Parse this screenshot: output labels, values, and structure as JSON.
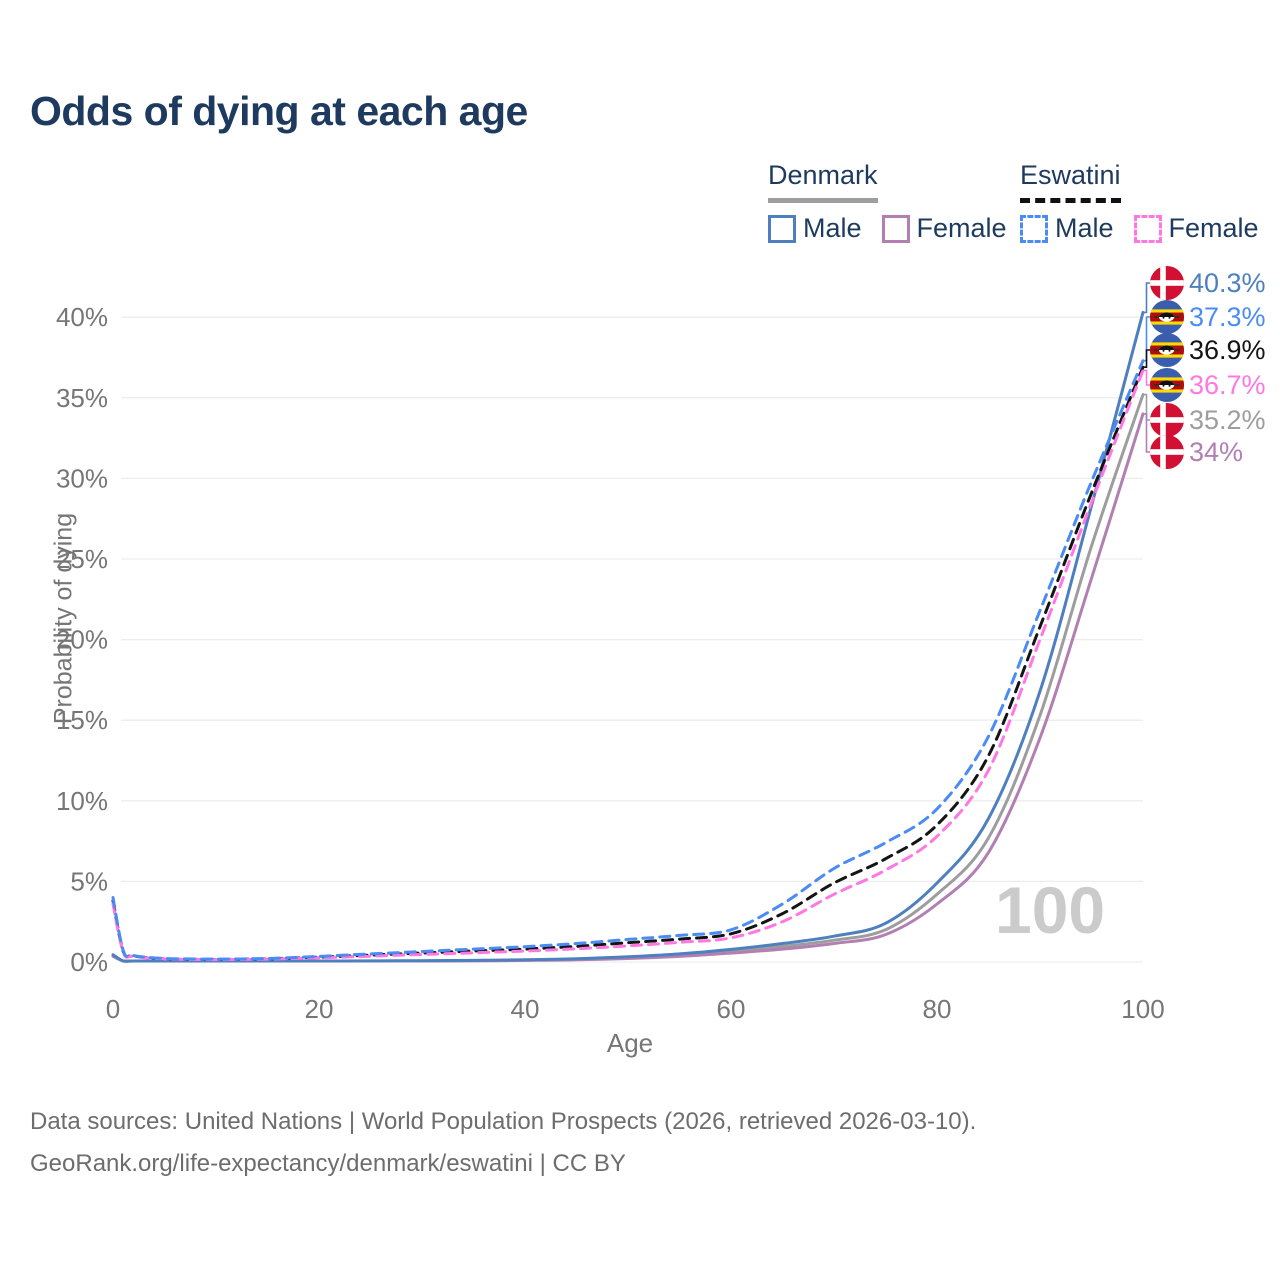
{
  "title": "Odds of dying at each age",
  "legend": {
    "groups": [
      {
        "name": "Denmark",
        "underline_color": "#9e9e9e",
        "underline_style": "solid",
        "items": [
          {
            "label": "Male",
            "color": "#4e7fbe",
            "style": "solid"
          },
          {
            "label": "Female",
            "color": "#b27fb2",
            "style": "solid"
          }
        ]
      },
      {
        "name": "Eswatini",
        "underline_color": "#111111",
        "underline_style": "dashed",
        "items": [
          {
            "label": "Male",
            "color": "#4b8bf4",
            "style": "dashed"
          },
          {
            "label": "Female",
            "color": "#ff78e2",
            "style": "dashed"
          }
        ]
      }
    ]
  },
  "watermark": "100",
  "footer": {
    "line1": "Data sources: United Nations | World Population Prospects (2026, retrieved 2026-03-10).",
    "line2": "GeoRank.org/life-expectancy/denmark/eswatini | CC BY"
  },
  "chart_data": {
    "type": "line",
    "title": "Odds of dying at each age",
    "xlabel": "Age",
    "ylabel": "Probability of dying",
    "xlim": [
      0,
      100
    ],
    "ylim": [
      0,
      42
    ],
    "grid": "horizontal",
    "legend_position": "top-right",
    "xticks": [
      {
        "v": 0,
        "label": "0"
      },
      {
        "v": 20,
        "label": "20"
      },
      {
        "v": 40,
        "label": "40"
      },
      {
        "v": 60,
        "label": "60"
      },
      {
        "v": 80,
        "label": "80"
      },
      {
        "v": 100,
        "label": "100"
      }
    ],
    "yticks": [
      {
        "v": 0,
        "label": "0%"
      },
      {
        "v": 5,
        "label": "5%"
      },
      {
        "v": 10,
        "label": "10%"
      },
      {
        "v": 15,
        "label": "15%"
      },
      {
        "v": 20,
        "label": "20%"
      },
      {
        "v": 25,
        "label": "25%"
      },
      {
        "v": 30,
        "label": "30%"
      },
      {
        "v": 35,
        "label": "35%"
      },
      {
        "v": 40,
        "label": "40%"
      }
    ],
    "x": [
      0,
      1,
      2,
      5,
      10,
      15,
      20,
      25,
      30,
      35,
      40,
      45,
      50,
      55,
      60,
      65,
      70,
      75,
      80,
      85,
      90,
      95,
      100
    ],
    "series": [
      {
        "name": "Denmark Male",
        "country": "Denmark",
        "sex": "male",
        "style": "solid",
        "color": "#4e7fbe",
        "flag": "denmark",
        "end_label": "40.3%",
        "values": [
          0.45,
          0.04,
          0.03,
          0.02,
          0.02,
          0.03,
          0.06,
          0.07,
          0.08,
          0.1,
          0.14,
          0.2,
          0.32,
          0.5,
          0.78,
          1.15,
          1.6,
          2.4,
          4.9,
          8.9,
          16.8,
          28.3,
          40.3
        ]
      },
      {
        "name": "Eswatini Male",
        "country": "Eswatini",
        "sex": "male",
        "style": "dashed",
        "color": "#4b8bf4",
        "flag": "eswatini",
        "end_label": "37.3%",
        "values": [
          4.0,
          0.7,
          0.4,
          0.22,
          0.18,
          0.22,
          0.35,
          0.5,
          0.65,
          0.8,
          0.95,
          1.15,
          1.4,
          1.65,
          2.0,
          3.6,
          5.8,
          7.4,
          9.5,
          14.0,
          21.8,
          29.8,
          37.3
        ]
      },
      {
        "name": "Eswatini Both sexes",
        "country": "Eswatini",
        "sex": "both",
        "style": "dashed",
        "color": "#141414",
        "flag": "eswatini",
        "end_label": "36.9%",
        "values": [
          3.8,
          0.65,
          0.38,
          0.2,
          0.16,
          0.2,
          0.3,
          0.43,
          0.56,
          0.68,
          0.8,
          0.97,
          1.2,
          1.42,
          1.75,
          3.0,
          4.9,
          6.4,
          8.5,
          12.8,
          20.8,
          29.1,
          36.9
        ]
      },
      {
        "name": "Eswatini Female",
        "country": "Eswatini",
        "sex": "female",
        "style": "dashed",
        "color": "#ff78e2",
        "flag": "eswatini",
        "end_label": "36.7%",
        "values": [
          3.6,
          0.6,
          0.35,
          0.19,
          0.15,
          0.18,
          0.26,
          0.36,
          0.47,
          0.57,
          0.68,
          0.82,
          1.0,
          1.22,
          1.5,
          2.5,
          4.2,
          5.7,
          7.8,
          11.9,
          20.0,
          28.5,
          36.7
        ]
      },
      {
        "name": "Denmark Both sexes",
        "country": "Denmark",
        "sex": "both",
        "style": "solid",
        "color": "#9d9d9d",
        "flag": "denmark",
        "end_label": "35.2%",
        "values": [
          0.4,
          0.035,
          0.025,
          0.018,
          0.018,
          0.025,
          0.05,
          0.06,
          0.07,
          0.09,
          0.12,
          0.17,
          0.27,
          0.42,
          0.66,
          0.97,
          1.35,
          2.0,
          4.2,
          7.7,
          15.3,
          25.8,
          35.2
        ]
      },
      {
        "name": "Denmark Female",
        "country": "Denmark",
        "sex": "female",
        "style": "solid",
        "color": "#b27fb2",
        "flag": "denmark",
        "end_label": "34%",
        "values": [
          0.35,
          0.03,
          0.02,
          0.015,
          0.015,
          0.02,
          0.035,
          0.045,
          0.055,
          0.07,
          0.1,
          0.14,
          0.22,
          0.35,
          0.55,
          0.8,
          1.15,
          1.7,
          3.6,
          6.8,
          13.9,
          23.8,
          34.0
        ]
      }
    ]
  }
}
